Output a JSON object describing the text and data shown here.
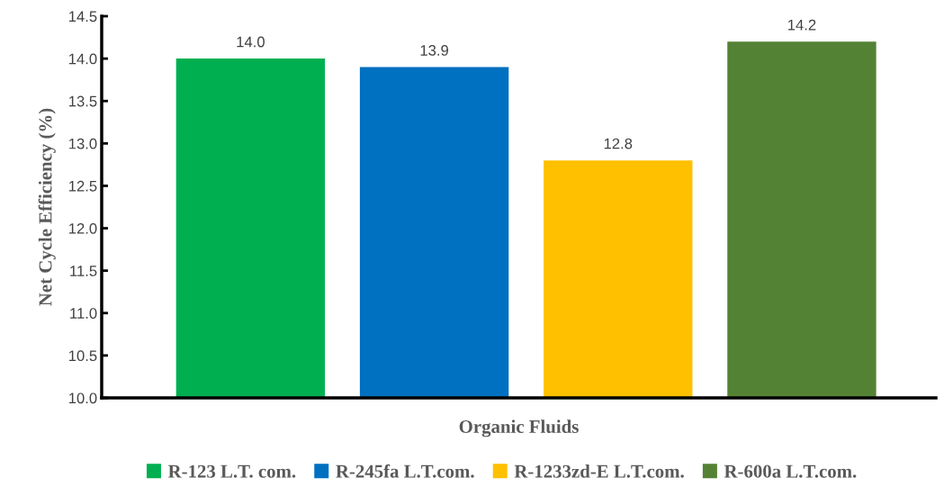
{
  "chart_data": {
    "type": "bar",
    "xlabel": "Organic Fluids",
    "ylabel": "Net Cycle Efficiency (%)",
    "categories": [
      null,
      null,
      null,
      null
    ],
    "series": [
      {
        "name": "R-123 L.T. com.",
        "color": "#00b050",
        "values": [
          14.0,
          null,
          null,
          null
        ],
        "value_labels": [
          "14.0",
          null,
          null,
          null
        ]
      },
      {
        "name": "R-245fa L.T.com.",
        "color": "#0070c0",
        "values": [
          null,
          13.9,
          null,
          null
        ],
        "value_labels": [
          null,
          "13.9",
          null,
          null
        ]
      },
      {
        "name": "R-1233zd-E L.T.com.",
        "color": "#ffc000",
        "values": [
          null,
          null,
          12.8,
          null
        ],
        "value_labels": [
          null,
          null,
          "12.8",
          null
        ]
      },
      {
        "name": "R-600a L.T.com.",
        "color": "#548235",
        "values": [
          null,
          null,
          null,
          14.2
        ],
        "value_labels": [
          null,
          null,
          null,
          "14.2"
        ]
      }
    ],
    "ylim": [
      10,
      14.5
    ],
    "yticks": [
      {
        "value": 10,
        "label": "10.0"
      },
      {
        "value": 10.5,
        "label": "10.5"
      },
      {
        "value": 11,
        "label": "11.0"
      },
      {
        "value": 11.5,
        "label": "11.5"
      },
      {
        "value": 12,
        "label": "12.0"
      },
      {
        "value": 12.5,
        "label": "12.5"
      },
      {
        "value": 13,
        "label": "13.0"
      },
      {
        "value": 13.5,
        "label": "13.5"
      },
      {
        "value": 14,
        "label": "14.0"
      },
      {
        "value": 14.5,
        "label": "14.5"
      }
    ],
    "grid": false,
    "legend": "bottom"
  }
}
